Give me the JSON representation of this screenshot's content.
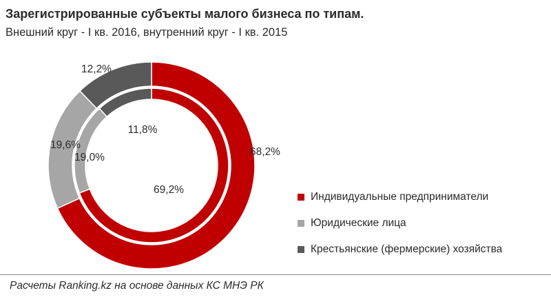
{
  "chart_data": {
    "type": "pie",
    "title": "Зарегистрированные  субъекты малого бизнеса по типам.",
    "subtitle": "Внешний  круг - I кв. 2016, внутренний  круг - I кв. 2015",
    "categories": [
      "Индивидуальные предприниматели",
      "Юридические лица",
      "Крестьянские (фермерские) хозяйства"
    ],
    "colors": [
      "#c00000",
      "#a6a6a6",
      "#595959"
    ],
    "series": [
      {
        "name": "I кв. 2016",
        "ring": "outer",
        "values": [
          68.2,
          19.6,
          12.2
        ],
        "labels": [
          "68,2%",
          "19,6%",
          "12,2%"
        ]
      },
      {
        "name": "I кв. 2015",
        "ring": "inner",
        "values": [
          69.2,
          19.0,
          11.8
        ],
        "labels": [
          "69,2%",
          "19,0%",
          "11,8%"
        ]
      }
    ],
    "legend_position": "right"
  },
  "footer": "Расчеты Ranking.kz на основе данных КС МНЭ РК"
}
